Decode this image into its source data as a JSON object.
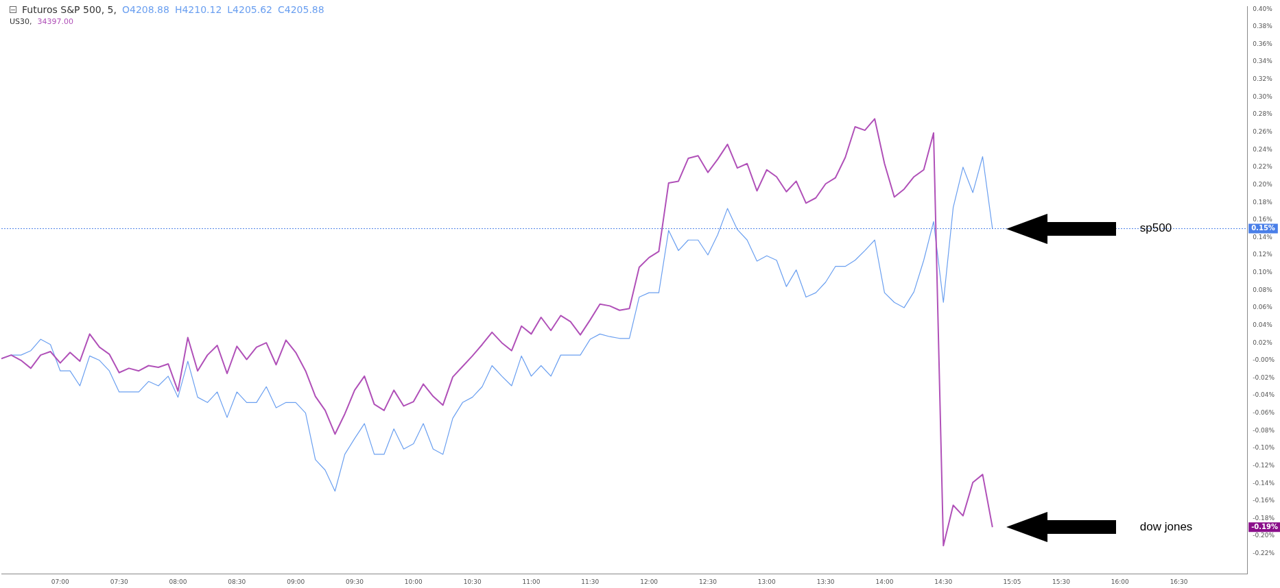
{
  "chart_data": {
    "type": "line",
    "title": "Futuros S&P 500, 5,",
    "subtitle": "US30,",
    "annotations": [
      "O4208.88",
      "H4210.12",
      "L4205.62",
      "C4205.88",
      "34397.00",
      "-0.19%"
    ],
    "x": [
      6.5,
      6.5833,
      6.6667,
      6.75,
      6.8333,
      6.9167,
      7,
      7.0833,
      7.1667,
      7.25,
      7.3333,
      7.4167,
      7.5,
      7.5833,
      7.6667,
      7.75,
      7.8333,
      7.9167,
      8,
      8.0833,
      8.1667,
      8.25,
      8.3333,
      8.4167,
      8.5,
      8.5833,
      8.6667,
      8.75,
      8.8333,
      8.9167,
      9,
      9.0833,
      9.1667,
      9.25,
      9.3333,
      9.4167,
      9.5,
      9.5833,
      9.6667,
      9.75,
      9.8333,
      9.9167,
      10,
      10.0833,
      10.1667,
      10.25,
      10.3333,
      10.4167,
      10.5,
      10.5833,
      10.6667,
      10.75,
      10.8333,
      10.9167,
      11,
      11.0833,
      11.1667,
      11.25,
      11.3333,
      11.4167,
      11.5,
      11.5833,
      11.6667,
      11.75,
      11.8333,
      11.9167,
      12,
      12.0833,
      12.1667,
      12.25,
      12.3333,
      12.4167,
      12.5,
      12.5833,
      12.6667,
      12.75,
      12.8333,
      12.9167,
      13,
      13.0833,
      13.1667,
      13.25,
      13.3333,
      13.4167,
      13.5,
      13.5833,
      13.6667,
      13.75,
      13.8333,
      13.9167,
      14,
      14.0833,
      14.1667,
      14.25,
      14.3333,
      14.4167,
      14.5,
      14.5833,
      14.6667,
      14.75,
      14.8333,
      14.9167
    ],
    "series": [
      {
        "name": "sp500",
        "color": "#6a9ff0",
        "values": [
          0.002,
          0.006,
          0.006,
          0.011,
          0.024,
          0.018,
          -0.012,
          -0.012,
          -0.029,
          0.005,
          0.0,
          -0.012,
          -0.036,
          -0.036,
          -0.036,
          -0.024,
          -0.029,
          -0.018,
          -0.042,
          -0.001,
          -0.042,
          -0.048,
          -0.036,
          -0.065,
          -0.036,
          -0.048,
          -0.048,
          -0.03,
          -0.054,
          -0.048,
          -0.048,
          -0.06,
          -0.113,
          -0.125,
          -0.149,
          -0.107,
          -0.089,
          -0.072,
          -0.107,
          -0.107,
          -0.078,
          -0.101,
          -0.095,
          -0.072,
          -0.101,
          -0.107,
          -0.066,
          -0.048,
          -0.042,
          -0.03,
          -0.006,
          -0.018,
          -0.029,
          0.005,
          -0.018,
          -0.006,
          -0.018,
          0.006,
          0.006,
          0.006,
          0.024,
          0.03,
          0.027,
          0.025,
          0.025,
          0.072,
          0.077,
          0.077,
          0.148,
          0.125,
          0.137,
          0.137,
          0.12,
          0.143,
          0.173,
          0.149,
          0.137,
          0.113,
          0.119,
          0.114,
          0.084,
          0.103,
          0.072,
          0.077,
          0.089,
          0.107,
          0.107,
          0.114,
          0.125,
          0.137,
          0.077,
          0.066,
          0.06,
          0.078,
          0.114,
          0.158,
          0.066,
          0.174,
          0.22,
          0.191,
          0.232,
          0.15
        ]
      },
      {
        "name": "dow jones",
        "color": "#b050b8",
        "values": [
          0.002,
          0.006,
          0.0,
          -0.009,
          0.006,
          0.01,
          -0.003,
          0.009,
          -0.001,
          0.03,
          0.015,
          0.007,
          -0.014,
          -0.009,
          -0.012,
          -0.006,
          -0.008,
          -0.004,
          -0.035,
          0.026,
          -0.012,
          0.006,
          0.017,
          -0.015,
          0.016,
          0.001,
          0.015,
          0.02,
          -0.005,
          0.023,
          0.009,
          -0.012,
          -0.041,
          -0.057,
          -0.084,
          -0.061,
          -0.034,
          -0.018,
          -0.05,
          -0.057,
          -0.034,
          -0.052,
          -0.047,
          -0.027,
          -0.041,
          -0.051,
          -0.019,
          -0.007,
          0.005,
          0.018,
          0.032,
          0.02,
          0.011,
          0.039,
          0.03,
          0.049,
          0.034,
          0.051,
          0.044,
          0.029,
          0.046,
          0.064,
          0.062,
          0.057,
          0.059,
          0.106,
          0.117,
          0.124,
          0.202,
          0.204,
          0.23,
          0.233,
          0.214,
          0.229,
          0.246,
          0.219,
          0.224,
          0.193,
          0.217,
          0.209,
          0.192,
          0.204,
          0.179,
          0.185,
          0.201,
          0.208,
          0.231,
          0.266,
          0.262,
          0.275,
          0.224,
          0.186,
          0.195,
          0.209,
          0.217,
          0.259,
          -0.211,
          -0.165,
          -0.177,
          -0.139,
          -0.13,
          -0.19
        ]
      }
    ],
    "xlim": [
      6.5,
      17.08
    ],
    "xticks": [
      {
        "value": 7,
        "label": "07:00"
      },
      {
        "value": 7.5,
        "label": "07:30"
      },
      {
        "value": 8,
        "label": "08:00"
      },
      {
        "value": 8.5,
        "label": "08:30"
      },
      {
        "value": 9,
        "label": "09:00"
      },
      {
        "value": 9.5,
        "label": "09:30"
      },
      {
        "value": 10,
        "label": "10:00"
      },
      {
        "value": 10.5,
        "label": "10:30"
      },
      {
        "value": 11,
        "label": "11:00"
      },
      {
        "value": 11.5,
        "label": "11:30"
      },
      {
        "value": 12,
        "label": "12:00"
      },
      {
        "value": 12.5,
        "label": "12:30"
      },
      {
        "value": 13,
        "label": "13:00"
      },
      {
        "value": 13.5,
        "label": "13:30"
      },
      {
        "value": 14,
        "label": "14:00"
      },
      {
        "value": 14.5,
        "label": "14:30"
      },
      {
        "value": 15.0833,
        "label": "15:05"
      },
      {
        "value": 15.5,
        "label": "15:30"
      },
      {
        "value": 16,
        "label": "16:00"
      },
      {
        "value": 16.5,
        "label": "16:30"
      }
    ],
    "ylim": [
      -0.243,
      0.403
    ],
    "yticks": [
      {
        "value": 0.4,
        "label": "0.40%"
      },
      {
        "value": 0.38,
        "label": "0.38%"
      },
      {
        "value": 0.36,
        "label": "0.36%"
      },
      {
        "value": 0.34,
        "label": "0.34%"
      },
      {
        "value": 0.32,
        "label": "0.32%"
      },
      {
        "value": 0.3,
        "label": "0.30%"
      },
      {
        "value": 0.28,
        "label": "0.28%"
      },
      {
        "value": 0.26,
        "label": "0.26%"
      },
      {
        "value": 0.24,
        "label": "0.24%"
      },
      {
        "value": 0.22,
        "label": "0.22%"
      },
      {
        "value": 0.2,
        "label": "0.20%"
      },
      {
        "value": 0.18,
        "label": "0.18%"
      },
      {
        "value": 0.16,
        "label": "0.16%"
      },
      {
        "value": 0.14,
        "label": "0.14%"
      },
      {
        "value": 0.12,
        "label": "0.12%"
      },
      {
        "value": 0.1,
        "label": "0.10%"
      },
      {
        "value": 0.08,
        "label": "0.08%"
      },
      {
        "value": 0.06,
        "label": "0.06%"
      },
      {
        "value": 0.04,
        "label": "0.04%"
      },
      {
        "value": 0.02,
        "label": "0.02%"
      },
      {
        "value": 0,
        "label": "-0.00%"
      },
      {
        "value": -0.02,
        "label": "-0.02%"
      },
      {
        "value": -0.04,
        "label": "-0.04%"
      },
      {
        "value": -0.06,
        "label": "-0.06%"
      },
      {
        "value": -0.08,
        "label": "-0.08%"
      },
      {
        "value": -0.1,
        "label": "-0.10%"
      },
      {
        "value": -0.12,
        "label": "-0.12%"
      },
      {
        "value": -0.14,
        "label": "-0.14%"
      },
      {
        "value": -0.16,
        "label": "-0.16%"
      },
      {
        "value": -0.18,
        "label": "-0.18%"
      },
      {
        "value": -0.2,
        "label": "-0.20%"
      },
      {
        "value": -0.22,
        "label": "-0.22%"
      }
    ],
    "ref_lines": [
      {
        "axis": "y",
        "value": 0.15,
        "label": "0.15%",
        "color": "#4a7fe8",
        "line_style": "dotted"
      }
    ],
    "line_style": "solid",
    "marker": "none",
    "grid": false,
    "legend": false
  }
}
